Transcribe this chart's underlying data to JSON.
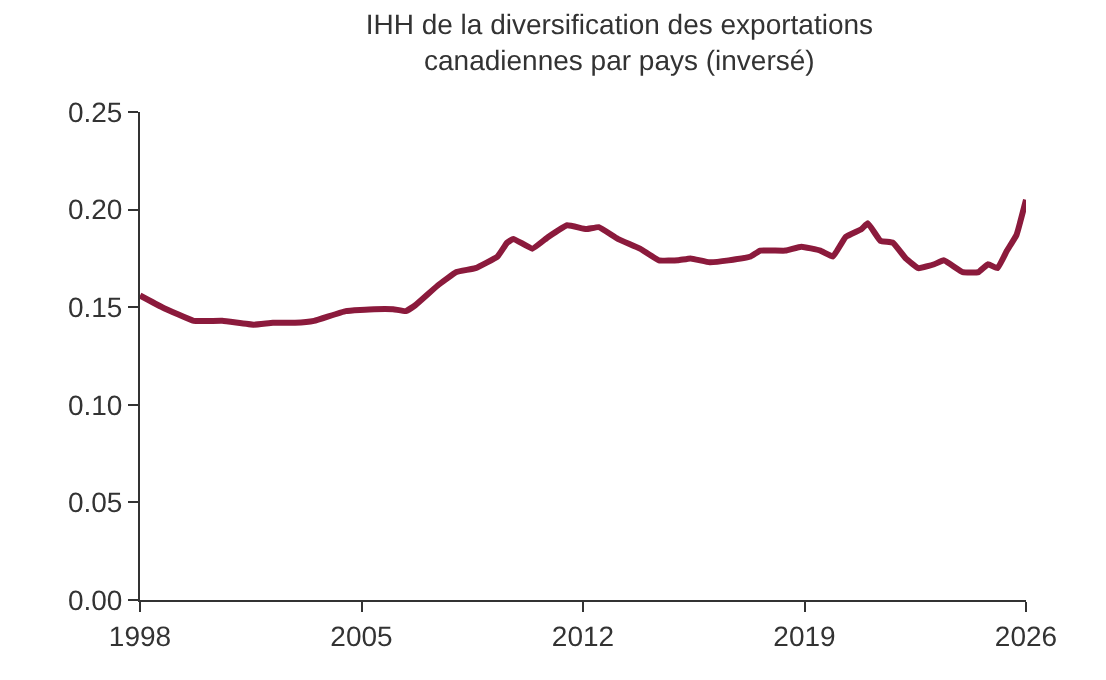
{
  "chart_data": {
    "type": "line",
    "title": "IHH de la diversification des exportations\ncanadiennes par pays (inversé)",
    "x": [
      1998.0,
      1998.7,
      1999.7,
      2000.6,
      2001.6,
      2002.2,
      2002.9,
      2003.5,
      2004.5,
      2005.4,
      2006.0,
      2006.4,
      2006.7,
      2007.4,
      2008.0,
      2008.6,
      2009.3,
      2009.6,
      2009.8,
      2010.4,
      2010.9,
      2011.5,
      2012.1,
      2012.5,
      2013.1,
      2013.8,
      2014.4,
      2015.0,
      2015.4,
      2016.0,
      2016.6,
      2017.3,
      2017.6,
      2018.4,
      2018.9,
      2019.5,
      2019.9,
      2020.3,
      2020.8,
      2021.0,
      2021.4,
      2021.8,
      2022.2,
      2022.6,
      2023.1,
      2023.4,
      2024.0,
      2024.5,
      2024.8,
      2025.1,
      2025.4,
      2025.7,
      2026.0
    ],
    "series": [
      {
        "color": "#8b1a3c",
        "values": [
          0.156,
          0.15,
          0.143,
          0.143,
          0.141,
          0.142,
          0.142,
          0.143,
          0.148,
          0.149,
          0.149,
          0.148,
          0.151,
          0.161,
          0.168,
          0.17,
          0.176,
          0.183,
          0.185,
          0.18,
          0.186,
          0.192,
          0.19,
          0.191,
          0.185,
          0.18,
          0.174,
          0.174,
          0.175,
          0.173,
          0.174,
          0.176,
          0.179,
          0.179,
          0.181,
          0.179,
          0.176,
          0.186,
          0.19,
          0.193,
          0.184,
          0.183,
          0.175,
          0.17,
          0.172,
          0.174,
          0.168,
          0.168,
          0.172,
          0.17,
          0.179,
          0.187,
          0.205
        ]
      }
    ],
    "xlim": [
      1998,
      2026
    ],
    "xticks": [
      1998,
      2005,
      2012,
      2019,
      2026
    ],
    "ylim": [
      0,
      0.25
    ],
    "yticks": [
      {
        "value": 0,
        "label": "0.00"
      },
      {
        "value": 0.05,
        "label": "0.05"
      },
      {
        "value": 0.1,
        "label": "0.10"
      },
      {
        "value": 0.15,
        "label": "0.15"
      },
      {
        "value": 0.2,
        "label": "0.20"
      },
      {
        "value": 0.25,
        "label": "0.25"
      }
    ],
    "marker": "none",
    "line_style": "solid"
  }
}
